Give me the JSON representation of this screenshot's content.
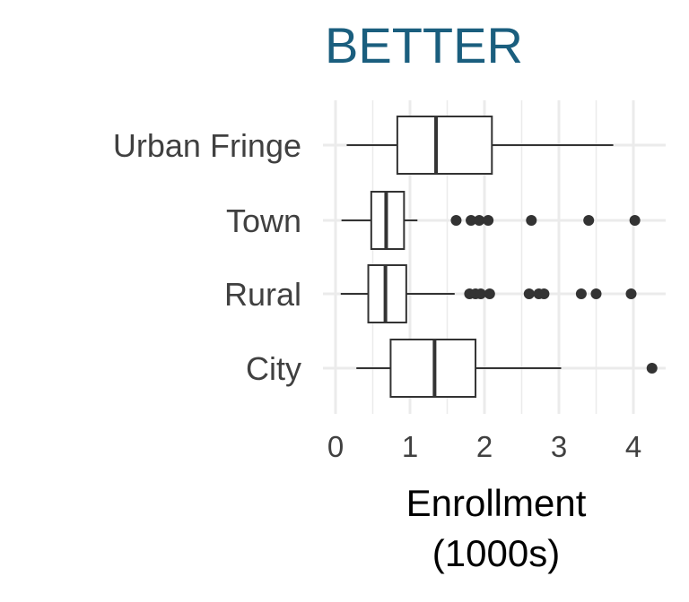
{
  "chart_data": {
    "type": "boxplot",
    "title": "BETTER",
    "xlabel_lines": [
      "Enrollment",
      "(1000s)"
    ],
    "ylabel": "",
    "xlim": [
      0,
      4.3
    ],
    "x_ticks": [
      "0",
      "1",
      "2",
      "3",
      "4"
    ],
    "x_tick_values": [
      0,
      1,
      2,
      3,
      4
    ],
    "orientation": "horizontal",
    "grid": true,
    "categories": [
      "Urban Fringe",
      "Town",
      "Rural",
      "City"
    ],
    "boxes": [
      {
        "category": "Urban Fringe",
        "whisker_low": 0.15,
        "q1": 0.83,
        "median": 1.35,
        "q3": 2.1,
        "whisker_high": 3.73,
        "outliers": []
      },
      {
        "category": "Town",
        "whisker_low": 0.08,
        "q1": 0.48,
        "median": 0.68,
        "q3": 0.92,
        "whisker_high": 1.1,
        "outliers": [
          1.62,
          1.82,
          1.93,
          2.05,
          2.63,
          3.4,
          4.02
        ]
      },
      {
        "category": "Rural",
        "whisker_low": 0.07,
        "q1": 0.44,
        "median": 0.67,
        "q3": 0.95,
        "whisker_high": 1.6,
        "outliers": [
          1.8,
          1.88,
          1.95,
          2.07,
          2.6,
          2.73,
          2.8,
          3.3,
          3.5,
          3.97
        ]
      },
      {
        "category": "City",
        "whisker_low": 0.28,
        "q1": 0.74,
        "median": 1.33,
        "q3": 1.88,
        "whisker_high": 3.03,
        "outliers": [
          4.25
        ]
      }
    ],
    "colors": {
      "title": "#1a5e7e",
      "box_stroke": "#333333",
      "box_fill": "#ffffff",
      "grid": "#ebebeb",
      "outlier": "#333333"
    }
  }
}
